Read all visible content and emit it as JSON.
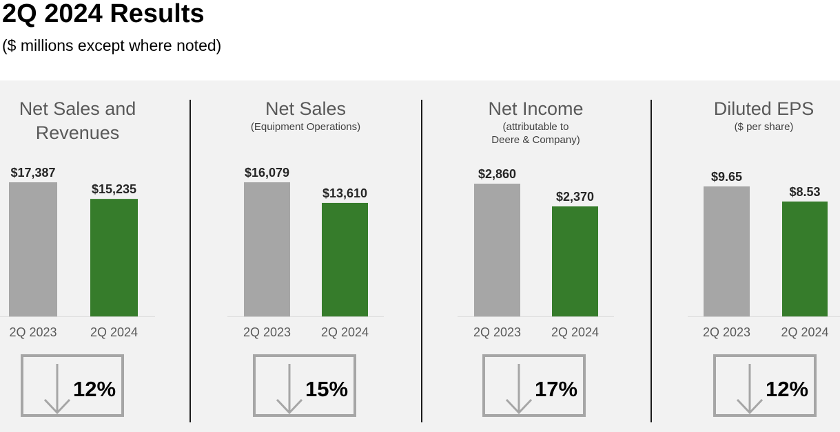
{
  "header": {
    "title": "2Q 2024 Results",
    "subtitle": "($ millions except where noted)"
  },
  "colors": {
    "prior_year_bar": "#a6a6a6",
    "current_year_bar": "#367c2b",
    "panel_background": "#f2f2f2"
  },
  "panels": [
    {
      "title_line1": "Net Sales and",
      "title_line2": "Revenues",
      "subtitle_line1": "",
      "subtitle_line2": "",
      "change": "12%",
      "change_icon": "down-arrow-icon"
    },
    {
      "title_line1": "Net Sales",
      "title_line2": "",
      "subtitle_line1": "(Equipment Operations)",
      "subtitle_line2": "",
      "change": "15%",
      "change_icon": "down-arrow-icon"
    },
    {
      "title_line1": "Net Income",
      "title_line2": "",
      "subtitle_line1": "(attributable to",
      "subtitle_line2": "Deere & Company)",
      "change": "17%",
      "change_icon": "down-arrow-icon"
    },
    {
      "title_line1": "Diluted EPS",
      "title_line2": "",
      "subtitle_line1": "($ per share)",
      "subtitle_line2": "",
      "change": "12%",
      "change_icon": "down-arrow-icon"
    }
  ],
  "chart_data": [
    {
      "type": "bar",
      "title": "Net Sales and Revenues",
      "categories": [
        "2Q 2023",
        "2Q 2024"
      ],
      "values": [
        17387,
        15235
      ],
      "value_labels": [
        "$17,387",
        "$15,235"
      ]
    },
    {
      "type": "bar",
      "title": "Net Sales",
      "categories": [
        "2Q 2023",
        "2Q 2024"
      ],
      "values": [
        16079,
        13610
      ],
      "value_labels": [
        "$16,079",
        "$13,610"
      ]
    },
    {
      "type": "bar",
      "title": "Net Income",
      "categories": [
        "2Q 2023",
        "2Q 2024"
      ],
      "values": [
        2860,
        2370
      ],
      "value_labels": [
        "$2,860",
        "$2,370"
      ]
    },
    {
      "type": "bar",
      "title": "Diluted EPS",
      "categories": [
        "2Q 2023",
        "2Q 2024"
      ],
      "values": [
        9.65,
        8.53
      ],
      "value_labels": [
        "$9.65",
        "$8.53"
      ]
    }
  ]
}
